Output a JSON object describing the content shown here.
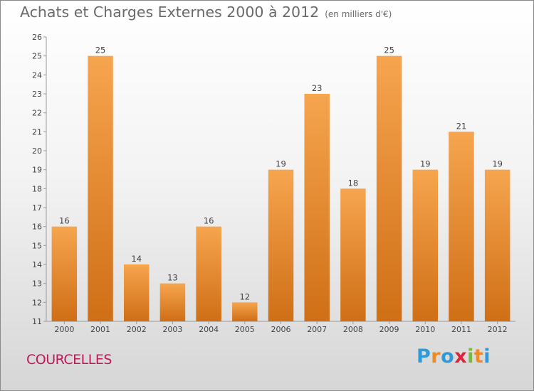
{
  "header": {
    "title": "Achats et Charges Externes 2000 à 2012",
    "unit": "(en milliers d'€)"
  },
  "footer": {
    "location": "COURCELLES",
    "brand_letters": [
      "P",
      "r",
      "o",
      "x",
      "i",
      "t",
      "i"
    ],
    "brand_colors": [
      "#2e9bd6",
      "#f08a24",
      "#2e9bd6",
      "#e0243a",
      "#7ab648",
      "#f08a24",
      "#2e9bd6"
    ]
  },
  "colors": {
    "bar_light": "#f6a54f",
    "bar_dark": "#cf6f16",
    "title": "#6a6a6a",
    "location": "#c2185b"
  },
  "chart_data": {
    "type": "bar",
    "title": "Achats et Charges Externes 2000 à 2012",
    "subtitle": "(en milliers d'€)",
    "categories": [
      "2000",
      "2001",
      "2002",
      "2003",
      "2004",
      "2005",
      "2006",
      "2007",
      "2008",
      "2009",
      "2010",
      "2011",
      "2012"
    ],
    "values": [
      16,
      25,
      14,
      13,
      16,
      12,
      19,
      23,
      18,
      25,
      19,
      21,
      19
    ],
    "ylim": [
      11,
      26
    ],
    "yticks": [
      11,
      12,
      13,
      14,
      15,
      16,
      17,
      18,
      19,
      20,
      21,
      22,
      23,
      24,
      25,
      26
    ],
    "data_labels": true,
    "grid": false,
    "legend": "none"
  }
}
